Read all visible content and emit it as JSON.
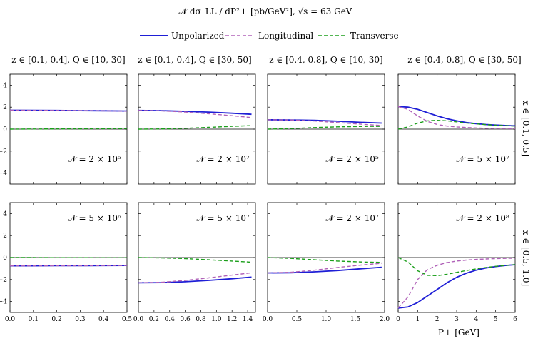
{
  "header": {
    "title": "𝒩 dσ_LL / dP²⊥ [pb/GeV²],  √s = 63 GeV"
  },
  "legend": {
    "entries": [
      {
        "label": "Unpolarized",
        "color": "#1f1fd6",
        "dash": "solid"
      },
      {
        "label": "Longitudinal",
        "color": "#b061b8",
        "dash": "dashed"
      },
      {
        "label": "Transverse",
        "color": "#1a9e1a",
        "dash": "dashed"
      }
    ],
    "placement": "top-center"
  },
  "columns": [
    {
      "title": "z ∈ [0.1, 0.4],  Q ∈ [10, 30]"
    },
    {
      "title": "z ∈ [0.1, 0.4],  Q ∈ [30, 50]"
    },
    {
      "title": "z ∈ [0.4, 0.8],  Q ∈ [10, 30]"
    },
    {
      "title": "z ∈ [0.4, 0.8],  Q ∈ [30, 50]"
    }
  ],
  "rows": [
    {
      "label": "x ∈ [0.1, 0.5]"
    },
    {
      "label": "x ∈ [0.5, 1.0]"
    }
  ],
  "xlabel": "P⊥ [GeV]",
  "chart_data": {
    "type": "line",
    "ylim": [
      -5,
      5
    ],
    "yticks": [
      -4,
      -2,
      0,
      2,
      4
    ],
    "grid": false,
    "zero_line": true,
    "panels": [
      {
        "row": 0,
        "col": 0,
        "normalization": "𝒩 = 2 × 10⁵",
        "xlim": [
          0,
          0.5
        ],
        "xticks": [],
        "series": [
          {
            "name": "Unpolarized",
            "points": [
              [
                0,
                1.72
              ],
              [
                0.1,
                1.71
              ],
              [
                0.2,
                1.7
              ],
              [
                0.3,
                1.68
              ],
              [
                0.4,
                1.67
              ],
              [
                0.5,
                1.65
              ]
            ]
          },
          {
            "name": "Longitudinal",
            "points": [
              [
                0,
                1.72
              ],
              [
                0.1,
                1.71
              ],
              [
                0.2,
                1.7
              ],
              [
                0.3,
                1.68
              ],
              [
                0.4,
                1.66
              ],
              [
                0.5,
                1.64
              ]
            ]
          },
          {
            "name": "Transverse",
            "points": [
              [
                0,
                0.0
              ],
              [
                0.1,
                0.01
              ],
              [
                0.2,
                0.02
              ],
              [
                0.3,
                0.03
              ],
              [
                0.4,
                0.04
              ],
              [
                0.5,
                0.05
              ]
            ]
          }
        ]
      },
      {
        "row": 0,
        "col": 1,
        "normalization": "𝒩 = 2 × 10⁷",
        "xlim": [
          0,
          1.5
        ],
        "xticks": [],
        "series": [
          {
            "name": "Unpolarized",
            "points": [
              [
                0,
                1.7
              ],
              [
                0.3,
                1.68
              ],
              [
                0.6,
                1.62
              ],
              [
                0.9,
                1.55
              ],
              [
                1.2,
                1.45
              ],
              [
                1.45,
                1.35
              ]
            ]
          },
          {
            "name": "Longitudinal",
            "points": [
              [
                0,
                1.7
              ],
              [
                0.3,
                1.66
              ],
              [
                0.6,
                1.55
              ],
              [
                0.9,
                1.4
              ],
              [
                1.2,
                1.22
              ],
              [
                1.45,
                1.05
              ]
            ]
          },
          {
            "name": "Transverse",
            "points": [
              [
                0,
                0.0
              ],
              [
                0.3,
                0.02
              ],
              [
                0.6,
                0.08
              ],
              [
                0.9,
                0.16
              ],
              [
                1.2,
                0.25
              ],
              [
                1.45,
                0.32
              ]
            ]
          }
        ]
      },
      {
        "row": 0,
        "col": 2,
        "normalization": "𝒩 = 2 × 10⁵",
        "xlim": [
          0,
          2.0
        ],
        "xticks": [],
        "series": [
          {
            "name": "Unpolarized",
            "points": [
              [
                0,
                0.85
              ],
              [
                0.4,
                0.84
              ],
              [
                0.8,
                0.8
              ],
              [
                1.2,
                0.72
              ],
              [
                1.6,
                0.62
              ],
              [
                1.95,
                0.55
              ]
            ]
          },
          {
            "name": "Longitudinal",
            "points": [
              [
                0,
                0.85
              ],
              [
                0.4,
                0.83
              ],
              [
                0.8,
                0.74
              ],
              [
                1.2,
                0.6
              ],
              [
                1.6,
                0.45
              ],
              [
                1.95,
                0.33
              ]
            ]
          },
          {
            "name": "Transverse",
            "points": [
              [
                0,
                0.0
              ],
              [
                0.4,
                0.05
              ],
              [
                0.8,
                0.14
              ],
              [
                1.2,
                0.21
              ],
              [
                1.6,
                0.24
              ],
              [
                1.95,
                0.25
              ]
            ]
          }
        ]
      },
      {
        "row": 0,
        "col": 3,
        "normalization": "𝒩 = 5 × 10⁷",
        "xlim": [
          0,
          6
        ],
        "xticks": [],
        "series": [
          {
            "name": "Unpolarized",
            "points": [
              [
                0,
                2.05
              ],
              [
                0.5,
                2.0
              ],
              [
                1,
                1.8
              ],
              [
                1.5,
                1.5
              ],
              [
                2,
                1.2
              ],
              [
                2.5,
                0.95
              ],
              [
                3,
                0.75
              ],
              [
                3.5,
                0.6
              ],
              [
                4,
                0.5
              ],
              [
                4.5,
                0.42
              ],
              [
                5,
                0.37
              ],
              [
                5.5,
                0.33
              ],
              [
                6,
                0.3
              ]
            ]
          },
          {
            "name": "Longitudinal",
            "points": [
              [
                0,
                2.05
              ],
              [
                0.5,
                1.8
              ],
              [
                1,
                1.2
              ],
              [
                1.5,
                0.7
              ],
              [
                2,
                0.42
              ],
              [
                2.5,
                0.28
              ],
              [
                3,
                0.2
              ],
              [
                3.5,
                0.15
              ],
              [
                4,
                0.11
              ],
              [
                4.5,
                0.08
              ],
              [
                5,
                0.06
              ],
              [
                5.5,
                0.05
              ],
              [
                6,
                0.04
              ]
            ]
          },
          {
            "name": "Transverse",
            "points": [
              [
                0,
                0.0
              ],
              [
                0.5,
                0.2
              ],
              [
                1,
                0.55
              ],
              [
                1.5,
                0.75
              ],
              [
                2,
                0.8
              ],
              [
                2.5,
                0.75
              ],
              [
                3,
                0.66
              ],
              [
                3.5,
                0.56
              ],
              [
                4,
                0.48
              ],
              [
                4.5,
                0.41
              ],
              [
                5,
                0.36
              ],
              [
                5.5,
                0.32
              ],
              [
                6,
                0.28
              ]
            ]
          }
        ]
      },
      {
        "row": 1,
        "col": 0,
        "normalization": "𝒩 = 5 × 10⁶",
        "xlim": [
          0,
          0.5
        ],
        "xticks": [
          0,
          0.1,
          0.2,
          0.3,
          0.4,
          0.5
        ],
        "series": [
          {
            "name": "Unpolarized",
            "points": [
              [
                0,
                -0.75
              ],
              [
                0.1,
                -0.75
              ],
              [
                0.2,
                -0.74
              ],
              [
                0.3,
                -0.74
              ],
              [
                0.4,
                -0.73
              ],
              [
                0.5,
                -0.72
              ]
            ]
          },
          {
            "name": "Longitudinal",
            "points": [
              [
                0,
                -0.75
              ],
              [
                0.1,
                -0.75
              ],
              [
                0.2,
                -0.74
              ],
              [
                0.3,
                -0.74
              ],
              [
                0.4,
                -0.73
              ],
              [
                0.5,
                -0.72
              ]
            ]
          },
          {
            "name": "Transverse",
            "points": [
              [
                0,
                0.0
              ],
              [
                0.1,
                0.0
              ],
              [
                0.2,
                -0.01
              ],
              [
                0.3,
                -0.01
              ],
              [
                0.4,
                -0.02
              ],
              [
                0.5,
                -0.02
              ]
            ]
          }
        ]
      },
      {
        "row": 1,
        "col": 1,
        "normalization": "𝒩 = 5 × 10⁷",
        "xlim": [
          0,
          1.5
        ],
        "xticks": [
          0,
          0.2,
          0.4,
          0.6,
          0.8,
          1.0,
          1.2,
          1.4
        ],
        "series": [
          {
            "name": "Unpolarized",
            "points": [
              [
                0,
                -2.3
              ],
              [
                0.3,
                -2.28
              ],
              [
                0.6,
                -2.2
              ],
              [
                0.9,
                -2.08
              ],
              [
                1.2,
                -1.93
              ],
              [
                1.45,
                -1.78
              ]
            ]
          },
          {
            "name": "Longitudinal",
            "points": [
              [
                0,
                -2.3
              ],
              [
                0.3,
                -2.25
              ],
              [
                0.6,
                -2.08
              ],
              [
                0.9,
                -1.85
              ],
              [
                1.2,
                -1.6
              ],
              [
                1.45,
                -1.38
              ]
            ]
          },
          {
            "name": "Transverse",
            "points": [
              [
                0,
                0.0
              ],
              [
                0.3,
                -0.03
              ],
              [
                0.6,
                -0.1
              ],
              [
                0.9,
                -0.2
              ],
              [
                1.2,
                -0.32
              ],
              [
                1.45,
                -0.42
              ]
            ]
          }
        ]
      },
      {
        "row": 1,
        "col": 2,
        "normalization": "𝒩 = 2 × 10⁷",
        "xlim": [
          0,
          2.0
        ],
        "xticks": [
          0,
          0.5,
          1.0,
          1.5,
          2.0
        ],
        "series": [
          {
            "name": "Unpolarized",
            "points": [
              [
                0,
                -1.4
              ],
              [
                0.4,
                -1.38
              ],
              [
                0.8,
                -1.3
              ],
              [
                1.2,
                -1.18
              ],
              [
                1.6,
                -1.02
              ],
              [
                1.95,
                -0.88
              ]
            ]
          },
          {
            "name": "Longitudinal",
            "points": [
              [
                0,
                -1.4
              ],
              [
                0.4,
                -1.34
              ],
              [
                0.8,
                -1.15
              ],
              [
                1.2,
                -0.9
              ],
              [
                1.6,
                -0.68
              ],
              [
                1.95,
                -0.52
              ]
            ]
          },
          {
            "name": "Transverse",
            "points": [
              [
                0,
                0.0
              ],
              [
                0.4,
                -0.08
              ],
              [
                0.8,
                -0.2
              ],
              [
                1.2,
                -0.32
              ],
              [
                1.6,
                -0.4
              ],
              [
                1.95,
                -0.44
              ]
            ]
          }
        ]
      },
      {
        "row": 1,
        "col": 3,
        "normalization": "𝒩 = 2 × 10⁸",
        "xlim": [
          0,
          6
        ],
        "xticks": [
          0,
          1,
          2,
          3,
          4,
          5,
          6
        ],
        "series": [
          {
            "name": "Unpolarized",
            "points": [
              [
                0,
                -4.6
              ],
              [
                0.5,
                -4.5
              ],
              [
                1,
                -4.1
              ],
              [
                1.5,
                -3.5
              ],
              [
                2,
                -2.9
              ],
              [
                2.5,
                -2.3
              ],
              [
                3,
                -1.8
              ],
              [
                3.5,
                -1.42
              ],
              [
                4,
                -1.15
              ],
              [
                4.5,
                -0.95
              ],
              [
                5,
                -0.82
              ],
              [
                5.5,
                -0.72
              ],
              [
                6,
                -0.65
              ]
            ]
          },
          {
            "name": "Longitudinal",
            "points": [
              [
                0,
                -4.6
              ],
              [
                0.5,
                -3.6
              ],
              [
                1,
                -2.0
              ],
              [
                1.5,
                -1.1
              ],
              [
                2,
                -0.7
              ],
              [
                2.5,
                -0.46
              ],
              [
                3,
                -0.32
              ],
              [
                3.5,
                -0.23
              ],
              [
                4,
                -0.17
              ],
              [
                4.5,
                -0.13
              ],
              [
                5,
                -0.1
              ],
              [
                5.5,
                -0.08
              ],
              [
                6,
                -0.06
              ]
            ]
          },
          {
            "name": "Transverse",
            "points": [
              [
                0,
                0.0
              ],
              [
                0.5,
                -0.4
              ],
              [
                1,
                -1.2
              ],
              [
                1.5,
                -1.62
              ],
              [
                2,
                -1.65
              ],
              [
                2.5,
                -1.52
              ],
              [
                3,
                -1.35
              ],
              [
                3.5,
                -1.18
              ],
              [
                4,
                -1.03
              ],
              [
                4.5,
                -0.9
              ],
              [
                5,
                -0.8
              ],
              [
                5.5,
                -0.72
              ],
              [
                6,
                -0.65
              ]
            ]
          }
        ]
      }
    ]
  }
}
